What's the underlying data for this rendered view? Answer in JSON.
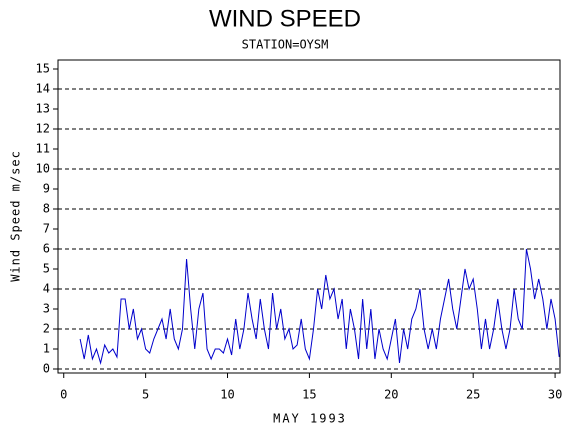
{
  "chart_data": {
    "type": "line",
    "title": "WIND SPEED",
    "subtitle": "STATION=OYSM",
    "x_label": "MAY 1993",
    "y_label": "Wind Speed m/sec",
    "xlim": [
      -0.35,
      30.3
    ],
    "xticks": [
      0,
      5,
      10,
      15,
      20,
      25,
      30
    ],
    "ylim": [
      -0.2,
      15.45
    ],
    "yticks": [
      0,
      1,
      2,
      3,
      4,
      5,
      6,
      7,
      8,
      9,
      10,
      11,
      12,
      13,
      14,
      15
    ],
    "grid": true,
    "grid_values": [
      0,
      2,
      4,
      6,
      8,
      10,
      12,
      14
    ],
    "x": [
      1,
      1.25,
      1.5,
      1.75,
      2,
      2.25,
      2.5,
      2.75,
      3,
      3.25,
      3.5,
      3.75,
      4,
      4.25,
      4.5,
      4.75,
      5,
      5.25,
      5.5,
      5.75,
      6,
      6.25,
      6.5,
      6.75,
      7,
      7.25,
      7.5,
      7.75,
      8,
      8.25,
      8.5,
      8.75,
      9,
      9.25,
      9.5,
      9.75,
      10,
      10.25,
      10.5,
      10.75,
      11,
      11.25,
      11.5,
      11.75,
      12,
      12.25,
      12.5,
      12.75,
      13,
      13.25,
      13.5,
      13.75,
      14,
      14.25,
      14.5,
      14.75,
      15,
      15.25,
      15.5,
      15.75,
      16,
      16.25,
      16.5,
      16.75,
      17,
      17.25,
      17.5,
      17.75,
      18,
      18.25,
      18.5,
      18.75,
      19,
      19.25,
      19.5,
      19.75,
      20,
      20.25,
      20.5,
      20.75,
      21,
      21.25,
      21.5,
      21.75,
      22,
      22.25,
      22.5,
      22.75,
      23,
      23.25,
      23.5,
      23.75,
      24,
      24.25,
      24.5,
      24.75,
      25,
      25.25,
      25.5,
      25.75,
      26,
      26.25,
      26.5,
      26.75,
      27,
      27.25,
      27.5,
      27.75,
      28,
      28.25,
      28.5,
      28.75,
      29,
      29.25,
      29.5,
      29.75,
      30,
      30.25
    ],
    "series": [
      {
        "color": "#0000cc",
        "values": [
          1.5,
          0.5,
          1.7,
          0.5,
          1.0,
          0.3,
          1.2,
          0.8,
          1.0,
          0.6,
          3.5,
          3.5,
          2.0,
          3.0,
          1.5,
          2.0,
          1.0,
          0.8,
          1.5,
          2.0,
          2.5,
          1.5,
          3.0,
          1.5,
          1.0,
          2.0,
          5.5,
          3.0,
          1.0,
          3.0,
          3.8,
          1.0,
          0.5,
          1.0,
          1.0,
          0.8,
          1.5,
          0.7,
          2.5,
          1.0,
          2.0,
          3.8,
          2.5,
          1.5,
          3.5,
          2.0,
          1.0,
          3.8,
          2.0,
          3.0,
          1.5,
          2.0,
          1.0,
          1.2,
          2.5,
          1.0,
          0.5,
          2.0,
          4.0,
          3.0,
          4.7,
          3.5,
          4.0,
          2.5,
          3.5,
          1.0,
          3.0,
          2.0,
          0.5,
          3.5,
          1.0,
          3.0,
          0.5,
          2.0,
          1.0,
          0.5,
          1.5,
          2.5,
          0.3,
          2.0,
          1.0,
          2.5,
          3.0,
          4.0,
          2.0,
          1.0,
          2.0,
          1.0,
          2.5,
          3.5,
          4.5,
          3.0,
          2.0,
          3.5,
          5.0,
          4.0,
          4.5,
          3.0,
          1.0,
          2.5,
          1.0,
          2.0,
          3.5,
          2.0,
          1.0,
          2.0,
          4.0,
          2.5,
          2.0,
          6.0,
          5.0,
          3.5,
          4.5,
          3.5,
          2.0,
          3.5,
          2.5,
          0.6
        ]
      }
    ]
  }
}
